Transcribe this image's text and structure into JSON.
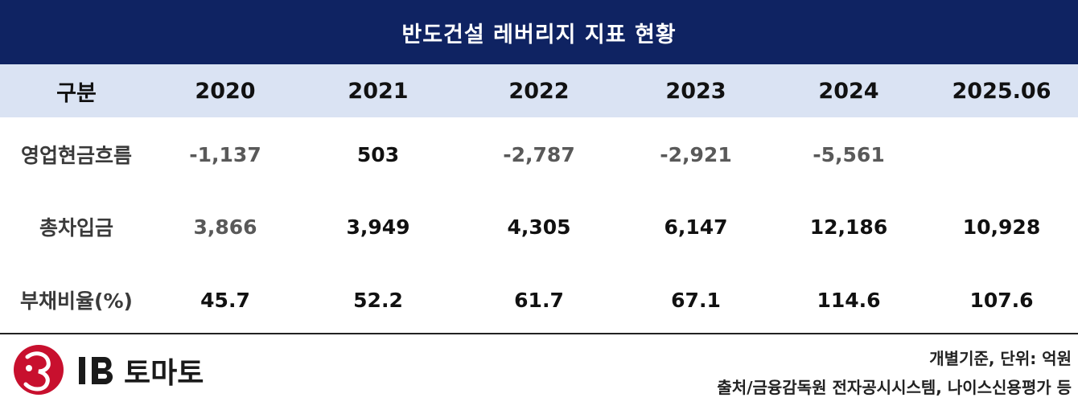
{
  "title": "반도건설 레버리지 지표 현황",
  "header": [
    "구분",
    "2020",
    "2021",
    "2022",
    "2023",
    "2024",
    "2025.06"
  ],
  "rows": [
    {
      "label": "영업현금흐름",
      "values": [
        "-1,137",
        "503",
        "-2,787",
        "-2,921",
        "-5,561",
        ""
      ]
    },
    {
      "label": "총차입금",
      "values": [
        "3,866",
        "3,949",
        "4,305",
        "6,147",
        "12,186",
        "10,928"
      ]
    },
    {
      "label": "부채비율(%)",
      "values": [
        "45.7",
        "52.2",
        "61.7",
        "67.1",
        "114.6",
        "107.6"
      ]
    }
  ],
  "footer": {
    "logo_text": "IB 토마토",
    "unit_note": "개별기준, 단위: 억원",
    "source_note": "출처/금융감독원 전자공시시스템, 나이스신용평가 등"
  },
  "colors": {
    "title_bg": "#0f2362",
    "header_bg": "#dae3f3",
    "logo_red": "#c8102e"
  }
}
